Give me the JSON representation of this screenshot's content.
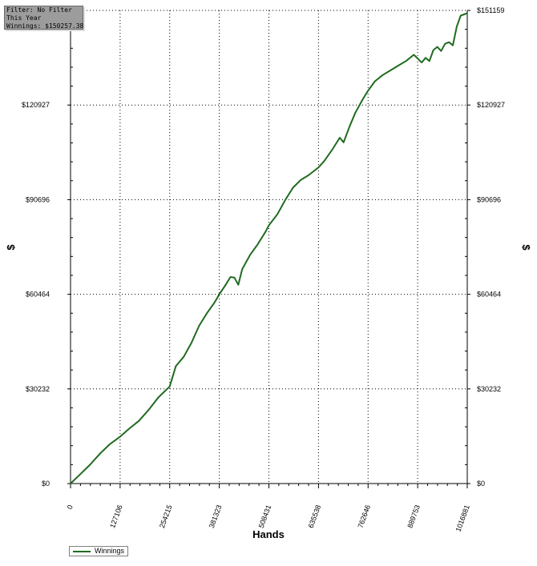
{
  "info_box": {
    "filter": "Filter: No Filter",
    "period": "This Year",
    "winnings": "Winnings: $150257.38"
  },
  "colors": {
    "line": "#1f6b1f",
    "grid": "#000000",
    "axis": "#000000"
  },
  "chart_data": {
    "type": "line",
    "title": "",
    "xlabel": "Hands",
    "ylabel": "$",
    "y2label": "$",
    "xlim": [
      0,
      1016881
    ],
    "ylim": [
      0,
      151159
    ],
    "grid": true,
    "legend_placement": "bottom-left",
    "x_ticks": [
      0,
      127106,
      254215,
      381323,
      508431,
      635538,
      762646,
      889753,
      1016881
    ],
    "x_tick_labels": [
      "0",
      "127106",
      "254215",
      "381323",
      "508431",
      "635538",
      "762646",
      "889753",
      "1016881"
    ],
    "y_ticks": [
      0,
      30232,
      60464,
      90696,
      120927,
      151159
    ],
    "y_tick_labels": [
      "$0",
      "$30232",
      "$60464",
      "$90696",
      "$120927",
      "$151159"
    ],
    "series": [
      {
        "name": "Winnings",
        "color": "#1f6b1f",
        "x": [
          0,
          25000,
          50000,
          75000,
          100000,
          127106,
          150000,
          175000,
          200000,
          225000,
          254215,
          270000,
          290000,
          310000,
          330000,
          350000,
          370000,
          381323,
          395000,
          410000,
          420000,
          430000,
          440000,
          460000,
          480000,
          500000,
          508431,
          530000,
          550000,
          570000,
          590000,
          610000,
          635538,
          650000,
          670000,
          690000,
          700000,
          715000,
          730000,
          750000,
          762646,
          780000,
          800000,
          820000,
          840000,
          860000,
          880000,
          889753,
          900000,
          910000,
          920000,
          930000,
          940000,
          950000,
          960000,
          970000,
          980000,
          990000,
          1000000,
          1016881
        ],
        "y": [
          0,
          3000,
          6000,
          9500,
          12500,
          15000,
          17500,
          20000,
          23500,
          27500,
          31000,
          37500,
          40500,
          45000,
          50500,
          54500,
          58000,
          60464,
          63000,
          66000,
          65800,
          63500,
          68500,
          73000,
          76500,
          80500,
          82500,
          86000,
          90500,
          94500,
          97000,
          98500,
          101000,
          103000,
          106500,
          110500,
          109000,
          114000,
          118500,
          123000,
          125500,
          128500,
          130500,
          132000,
          133500,
          135000,
          137000,
          135800,
          134500,
          136000,
          135000,
          138500,
          139500,
          138200,
          140500,
          141000,
          140000,
          146000,
          149500,
          150257
        ]
      }
    ]
  }
}
